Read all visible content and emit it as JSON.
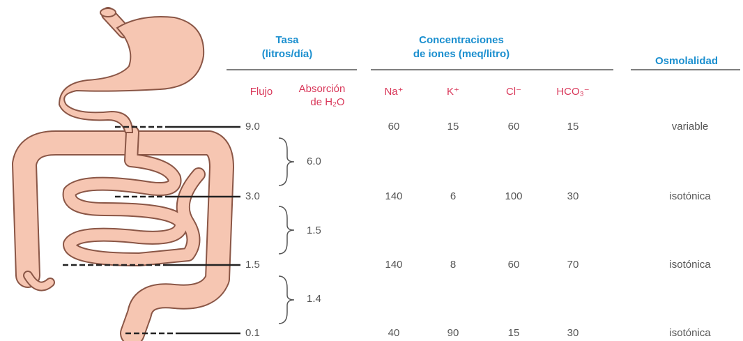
{
  "headers": {
    "rate": [
      "Tasa",
      "(litros/día)"
    ],
    "ions": [
      "Concentraciones",
      "de iones (meq/litro)"
    ],
    "osmolality": "Osmolalidad"
  },
  "subheaders": {
    "flow": "Flujo",
    "absorption": [
      "Absorción",
      "de H₂O"
    ],
    "na": "Na⁺",
    "k": "K⁺",
    "cl": "Cl⁻",
    "hco3": "HCO₃⁻"
  },
  "rows": [
    {
      "flow": "9.0",
      "na": "60",
      "k": "15",
      "cl": "60",
      "hco3": "15",
      "osmolality": "variable"
    },
    {
      "flow": "3.0",
      "na": "140",
      "k": "6",
      "cl": "100",
      "hco3": "30",
      "osmolality": "isotónica"
    },
    {
      "flow": "1.5",
      "na": "140",
      "k": "8",
      "cl": "60",
      "hco3": "70",
      "osmolality": "isotónica"
    },
    {
      "flow": "0.1",
      "na": "40",
      "k": "90",
      "cl": "15",
      "hco3": "30",
      "osmolality": "isotónica"
    }
  ],
  "absorption": [
    "6.0",
    "1.5",
    "1.4"
  ]
}
